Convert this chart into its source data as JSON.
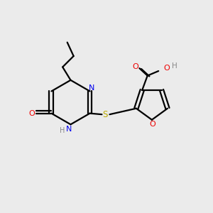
{
  "background_color": "#ebebeb",
  "bond_color": "#000000",
  "N_color": "#0000ee",
  "O_color": "#ee0000",
  "S_color": "#bbaa00",
  "H_color": "#888888",
  "figsize": [
    3.0,
    3.0
  ],
  "dpi": 100,
  "xlim": [
    0,
    10
  ],
  "ylim": [
    0,
    10
  ]
}
